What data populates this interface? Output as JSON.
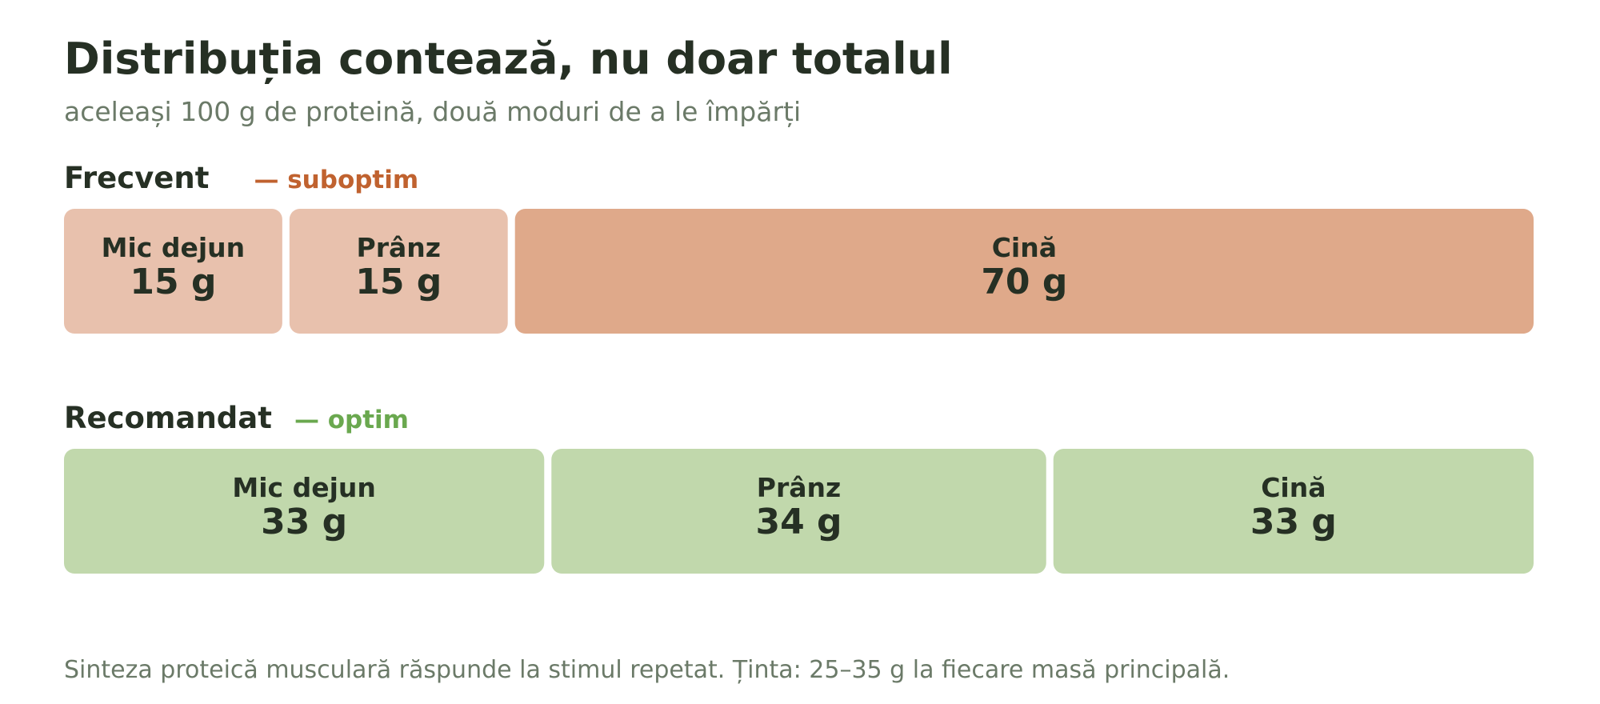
{
  "chart_data": {
    "type": "segmented-bar",
    "title": "Distribuția contează, nu doar totalul",
    "subtitle": "aceleași 100 g de proteină, două moduri de a le împărți",
    "note": "Sinteza proteică musculară răspunde la stimul repetat. Ținta: 25–35 g la fiecare masă principală.",
    "series": [
      {
        "name": "Frecvent",
        "status": "— suboptim",
        "status_color": "#c0622f",
        "categories": [
          "Mic dejun",
          "Prânz",
          "Cină"
        ],
        "values": [
          15,
          15,
          70
        ],
        "value_labels": [
          "15 g",
          "15 g",
          "70 g"
        ],
        "colors": [
          "#e8c1ad",
          "#e8c1ad",
          "#dfa98a"
        ]
      },
      {
        "name": "Recomandat",
        "status": "— optim",
        "status_color": "#6aa84f",
        "categories": [
          "Mic dejun",
          "Prânz",
          "Cină"
        ],
        "values": [
          33,
          34,
          33
        ],
        "value_labels": [
          "33 g",
          "34 g",
          "33 g"
        ],
        "colors": [
          "#c1d8ac",
          "#c1d8ac",
          "#c1d8ac"
        ]
      }
    ]
  }
}
